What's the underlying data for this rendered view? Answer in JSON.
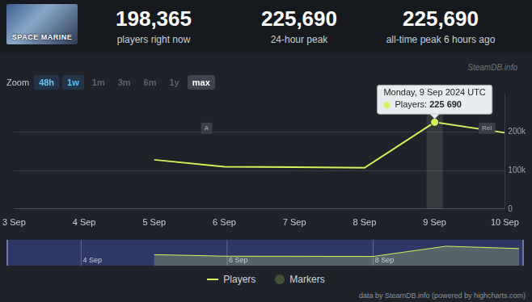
{
  "header": {
    "image_text": "SPACE MARINE",
    "stats": [
      {
        "text": "198,365",
        "caption": "players right now"
      },
      {
        "text": "225,690",
        "caption": "24-hour peak"
      },
      {
        "text": "225,690",
        "caption": "all-time peak 6 hours ago"
      }
    ]
  },
  "watermark": "SteamDB.info",
  "zoom": {
    "label": "Zoom",
    "buttons": [
      "48h",
      "1w",
      "1m",
      "3m",
      "6m",
      "1y",
      "max"
    ],
    "active": [
      "48h",
      "1w"
    ],
    "selected": "max"
  },
  "chart_data": {
    "type": "line",
    "categories": [
      "3 Sep",
      "4 Sep",
      "5 Sep",
      "6 Sep",
      "7 Sep",
      "8 Sep",
      "9 Sep",
      "10 Sep"
    ],
    "series": [
      {
        "name": "Players",
        "color": "#d4f25c",
        "values": [
          null,
          null,
          128000,
          110000,
          109000,
          107000,
          225690,
          198365
        ]
      }
    ],
    "ylim": [
      0,
      300000
    ],
    "yticks": [
      0,
      {
        "value": 100000,
        "label": "100k"
      },
      {
        "value": 200000,
        "label": "200k"
      }
    ],
    "grid": true,
    "legend": "bottom"
  },
  "markers": [
    {
      "label": "A",
      "date": "6 Sep"
    },
    {
      "label": "Rel",
      "date": "10 Sep"
    }
  ],
  "marker_legend": "Markers",
  "tooltip": {
    "x": "9 Sep",
    "title": "Monday, 9 Sep 2024 UTC",
    "text": "Players:",
    "value": 225690,
    "value_label": "225 690"
  },
  "navigator_ticks": [
    "4 Sep",
    "6 Sep",
    "8 Sep"
  ],
  "credits": "data by SteamDB.info (powered by highcharts.com)"
}
